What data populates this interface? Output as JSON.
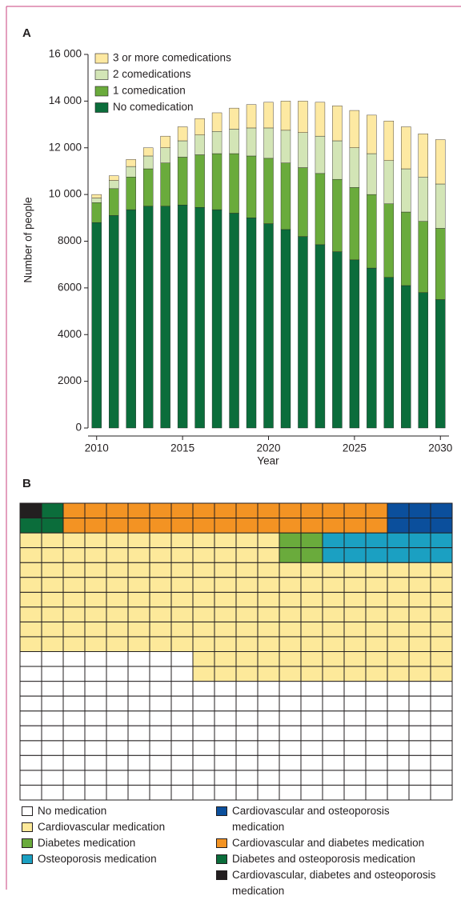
{
  "chart_data": [
    {
      "type": "bar",
      "panel": "A",
      "x_label": "Year",
      "y_label": "Number of people",
      "x": [
        2010,
        2011,
        2012,
        2013,
        2014,
        2015,
        2016,
        2017,
        2018,
        2019,
        2020,
        2021,
        2022,
        2023,
        2024,
        2025,
        2026,
        2027,
        2028,
        2029,
        2030
      ],
      "series": [
        {
          "name": "No comedication",
          "color": "#0b6d3b",
          "values": [
            8800,
            9100,
            9350,
            9500,
            9500,
            9550,
            9450,
            9350,
            9200,
            9000,
            8750,
            8500,
            8200,
            7850,
            7550,
            7200,
            6850,
            6450,
            6100,
            5800,
            5500
          ]
        },
        {
          "name": "1 comedication",
          "color": "#6aab3c",
          "values": [
            850,
            1150,
            1400,
            1600,
            1850,
            2050,
            2250,
            2400,
            2550,
            2650,
            2800,
            2850,
            2950,
            3050,
            3100,
            3100,
            3150,
            3150,
            3150,
            3050,
            3050
          ]
        },
        {
          "name": "2 comedications",
          "color": "#d3e5b6",
          "values": [
            200,
            350,
            450,
            550,
            650,
            700,
            850,
            950,
            1050,
            1200,
            1300,
            1400,
            1500,
            1600,
            1650,
            1700,
            1750,
            1850,
            1850,
            1900,
            1900
          ]
        },
        {
          "name": "3 or more comedications",
          "color": "#fde9a2",
          "values": [
            150,
            200,
            300,
            350,
            500,
            600,
            700,
            800,
            900,
            1000,
            1100,
            1250,
            1350,
            1450,
            1500,
            1600,
            1650,
            1700,
            1800,
            1850,
            1900
          ]
        }
      ],
      "xlim": [
        2009.5,
        2030.5
      ],
      "xticks": [
        2010,
        2015,
        2020,
        2025,
        2030
      ],
      "ylim": [
        0,
        16000
      ],
      "yticks": [
        0,
        2000,
        4000,
        6000,
        8000,
        {
          "value": 10000,
          "label": "10 000"
        },
        {
          "value": 12000,
          "label": "12 000"
        },
        {
          "value": 14000,
          "label": "14 000"
        },
        {
          "value": 16000,
          "label": "16 000"
        }
      ],
      "legend": "upper left",
      "stacked": true
    },
    {
      "type": "waffle",
      "panel": "B",
      "categories": [
        "No medication",
        "Cardiovascular medication",
        "Diabetes medication",
        "Osteoporosis medication",
        "Cardiovascular and osteoporosis medication",
        "Cardiovascular and diabetes medication",
        "Diabetes and osteoporosis medication",
        "Cardiovascular, diabetes and osteoporosis medication"
      ],
      "values": [
        176,
        168,
        4,
        12,
        6,
        30,
        3,
        1
      ],
      "colors": [
        "#ffffff",
        "#fde99a",
        "#6aab3c",
        "#1ba0c2",
        "#0b4f9c",
        "#f39323",
        "#0b6d3b",
        "#231f20"
      ]
    }
  ]
}
